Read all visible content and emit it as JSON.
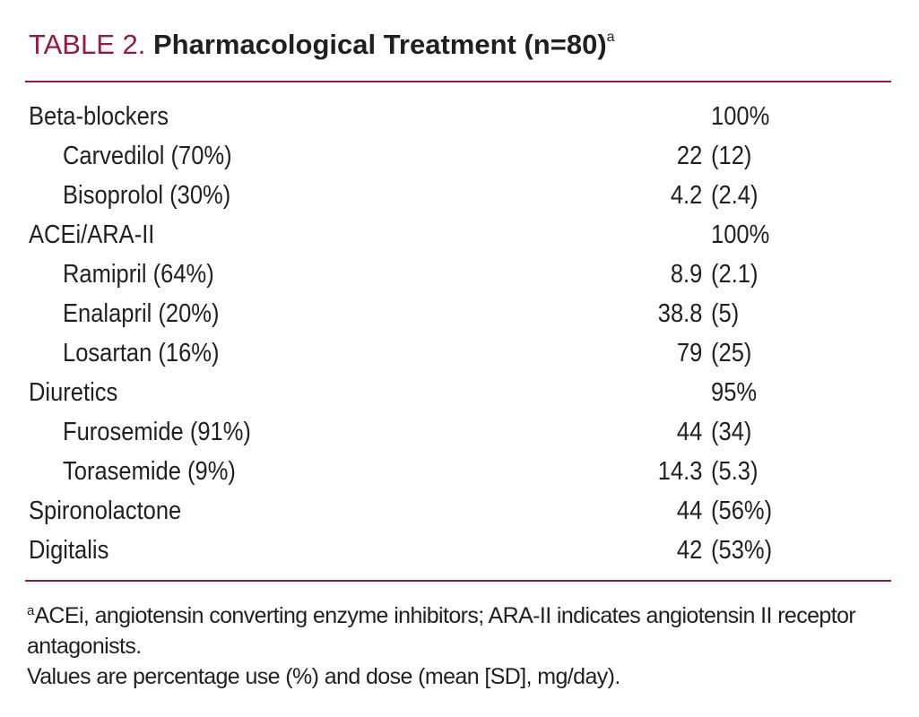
{
  "header": {
    "label": "TABLE 2.",
    "title": "Pharmacological Treatment (n=80)",
    "note_mark": "a"
  },
  "table": {
    "rows": [
      {
        "label": "Beta-blockers",
        "detail": "100%"
      },
      {
        "label": "Carvedilol (70%)",
        "indent": true,
        "value": "22",
        "detail": "(12)"
      },
      {
        "label": "Bisoprolol (30%)",
        "indent": true,
        "value": "4.2",
        "detail": "(2.4)"
      },
      {
        "label": "ACEi/ARA-II",
        "detail": "100%"
      },
      {
        "label": "Ramipril (64%)",
        "indent": true,
        "value": "8.9",
        "detail": "(2.1)"
      },
      {
        "label": "Enalapril (20%)",
        "indent": true,
        "value": "38.8",
        "detail": "(5)"
      },
      {
        "label": "Losartan (16%)",
        "indent": true,
        "value": "79",
        "detail": "(25)"
      },
      {
        "label": "Diuretics",
        "detail": "95%"
      },
      {
        "label": "Furosemide (91%)",
        "indent": true,
        "value": "44",
        "detail": "(34)"
      },
      {
        "label": "Torasemide (9%)",
        "indent": true,
        "value": "14.3",
        "detail": "(5.3)"
      },
      {
        "label": "Spironolactone",
        "value": "44",
        "detail": "(56%)"
      },
      {
        "label": "Digitalis",
        "value": "42",
        "detail": "(53%)"
      }
    ]
  },
  "footnotes": [
    {
      "mark": "a",
      "text": "ACEi, angiotensin converting enzyme inhibitors; ARA-II indicates angiotensin II receptor antagonists."
    },
    {
      "text": "Values are percentage use (%) and dose (mean [SD], mg/day)."
    }
  ]
}
